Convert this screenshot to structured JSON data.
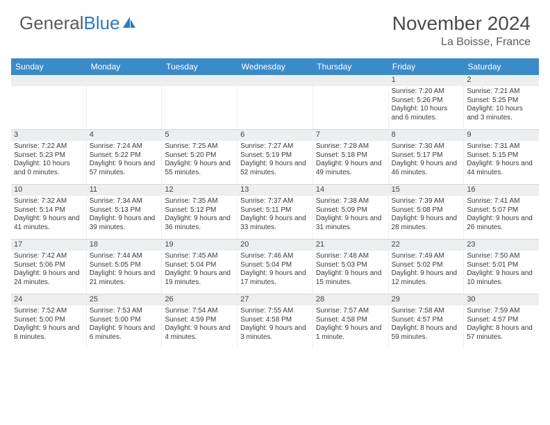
{
  "logo": {
    "text1": "General",
    "text2": "Blue"
  },
  "title": "November 2024",
  "location": "La Boisse, France",
  "colors": {
    "header_bg": "#3b8bc8",
    "header_text": "#ffffff",
    "daynum_bg": "#eceef0",
    "body_text": "#3a3a3a",
    "logo_gray": "#5a5a5a",
    "logo_blue": "#2b7bbf"
  },
  "day_names": [
    "Sunday",
    "Monday",
    "Tuesday",
    "Wednesday",
    "Thursday",
    "Friday",
    "Saturday"
  ],
  "weeks": [
    [
      {
        "n": "",
        "sr": "",
        "ss": "",
        "dl": ""
      },
      {
        "n": "",
        "sr": "",
        "ss": "",
        "dl": ""
      },
      {
        "n": "",
        "sr": "",
        "ss": "",
        "dl": ""
      },
      {
        "n": "",
        "sr": "",
        "ss": "",
        "dl": ""
      },
      {
        "n": "",
        "sr": "",
        "ss": "",
        "dl": ""
      },
      {
        "n": "1",
        "sr": "Sunrise: 7:20 AM",
        "ss": "Sunset: 5:26 PM",
        "dl": "Daylight: 10 hours and 6 minutes."
      },
      {
        "n": "2",
        "sr": "Sunrise: 7:21 AM",
        "ss": "Sunset: 5:25 PM",
        "dl": "Daylight: 10 hours and 3 minutes."
      }
    ],
    [
      {
        "n": "3",
        "sr": "Sunrise: 7:22 AM",
        "ss": "Sunset: 5:23 PM",
        "dl": "Daylight: 10 hours and 0 minutes."
      },
      {
        "n": "4",
        "sr": "Sunrise: 7:24 AM",
        "ss": "Sunset: 5:22 PM",
        "dl": "Daylight: 9 hours and 57 minutes."
      },
      {
        "n": "5",
        "sr": "Sunrise: 7:25 AM",
        "ss": "Sunset: 5:20 PM",
        "dl": "Daylight: 9 hours and 55 minutes."
      },
      {
        "n": "6",
        "sr": "Sunrise: 7:27 AM",
        "ss": "Sunset: 5:19 PM",
        "dl": "Daylight: 9 hours and 52 minutes."
      },
      {
        "n": "7",
        "sr": "Sunrise: 7:28 AM",
        "ss": "Sunset: 5:18 PM",
        "dl": "Daylight: 9 hours and 49 minutes."
      },
      {
        "n": "8",
        "sr": "Sunrise: 7:30 AM",
        "ss": "Sunset: 5:17 PM",
        "dl": "Daylight: 9 hours and 46 minutes."
      },
      {
        "n": "9",
        "sr": "Sunrise: 7:31 AM",
        "ss": "Sunset: 5:15 PM",
        "dl": "Daylight: 9 hours and 44 minutes."
      }
    ],
    [
      {
        "n": "10",
        "sr": "Sunrise: 7:32 AM",
        "ss": "Sunset: 5:14 PM",
        "dl": "Daylight: 9 hours and 41 minutes."
      },
      {
        "n": "11",
        "sr": "Sunrise: 7:34 AM",
        "ss": "Sunset: 5:13 PM",
        "dl": "Daylight: 9 hours and 39 minutes."
      },
      {
        "n": "12",
        "sr": "Sunrise: 7:35 AM",
        "ss": "Sunset: 5:12 PM",
        "dl": "Daylight: 9 hours and 36 minutes."
      },
      {
        "n": "13",
        "sr": "Sunrise: 7:37 AM",
        "ss": "Sunset: 5:11 PM",
        "dl": "Daylight: 9 hours and 33 minutes."
      },
      {
        "n": "14",
        "sr": "Sunrise: 7:38 AM",
        "ss": "Sunset: 5:09 PM",
        "dl": "Daylight: 9 hours and 31 minutes."
      },
      {
        "n": "15",
        "sr": "Sunrise: 7:39 AM",
        "ss": "Sunset: 5:08 PM",
        "dl": "Daylight: 9 hours and 28 minutes."
      },
      {
        "n": "16",
        "sr": "Sunrise: 7:41 AM",
        "ss": "Sunset: 5:07 PM",
        "dl": "Daylight: 9 hours and 26 minutes."
      }
    ],
    [
      {
        "n": "17",
        "sr": "Sunrise: 7:42 AM",
        "ss": "Sunset: 5:06 PM",
        "dl": "Daylight: 9 hours and 24 minutes."
      },
      {
        "n": "18",
        "sr": "Sunrise: 7:44 AM",
        "ss": "Sunset: 5:05 PM",
        "dl": "Daylight: 9 hours and 21 minutes."
      },
      {
        "n": "19",
        "sr": "Sunrise: 7:45 AM",
        "ss": "Sunset: 5:04 PM",
        "dl": "Daylight: 9 hours and 19 minutes."
      },
      {
        "n": "20",
        "sr": "Sunrise: 7:46 AM",
        "ss": "Sunset: 5:04 PM",
        "dl": "Daylight: 9 hours and 17 minutes."
      },
      {
        "n": "21",
        "sr": "Sunrise: 7:48 AM",
        "ss": "Sunset: 5:03 PM",
        "dl": "Daylight: 9 hours and 15 minutes."
      },
      {
        "n": "22",
        "sr": "Sunrise: 7:49 AM",
        "ss": "Sunset: 5:02 PM",
        "dl": "Daylight: 9 hours and 12 minutes."
      },
      {
        "n": "23",
        "sr": "Sunrise: 7:50 AM",
        "ss": "Sunset: 5:01 PM",
        "dl": "Daylight: 9 hours and 10 minutes."
      }
    ],
    [
      {
        "n": "24",
        "sr": "Sunrise: 7:52 AM",
        "ss": "Sunset: 5:00 PM",
        "dl": "Daylight: 9 hours and 8 minutes."
      },
      {
        "n": "25",
        "sr": "Sunrise: 7:53 AM",
        "ss": "Sunset: 5:00 PM",
        "dl": "Daylight: 9 hours and 6 minutes."
      },
      {
        "n": "26",
        "sr": "Sunrise: 7:54 AM",
        "ss": "Sunset: 4:59 PM",
        "dl": "Daylight: 9 hours and 4 minutes."
      },
      {
        "n": "27",
        "sr": "Sunrise: 7:55 AM",
        "ss": "Sunset: 4:58 PM",
        "dl": "Daylight: 9 hours and 3 minutes."
      },
      {
        "n": "28",
        "sr": "Sunrise: 7:57 AM",
        "ss": "Sunset: 4:58 PM",
        "dl": "Daylight: 9 hours and 1 minute."
      },
      {
        "n": "29",
        "sr": "Sunrise: 7:58 AM",
        "ss": "Sunset: 4:57 PM",
        "dl": "Daylight: 8 hours and 59 minutes."
      },
      {
        "n": "30",
        "sr": "Sunrise: 7:59 AM",
        "ss": "Sunset: 4:57 PM",
        "dl": "Daylight: 8 hours and 57 minutes."
      }
    ]
  ]
}
